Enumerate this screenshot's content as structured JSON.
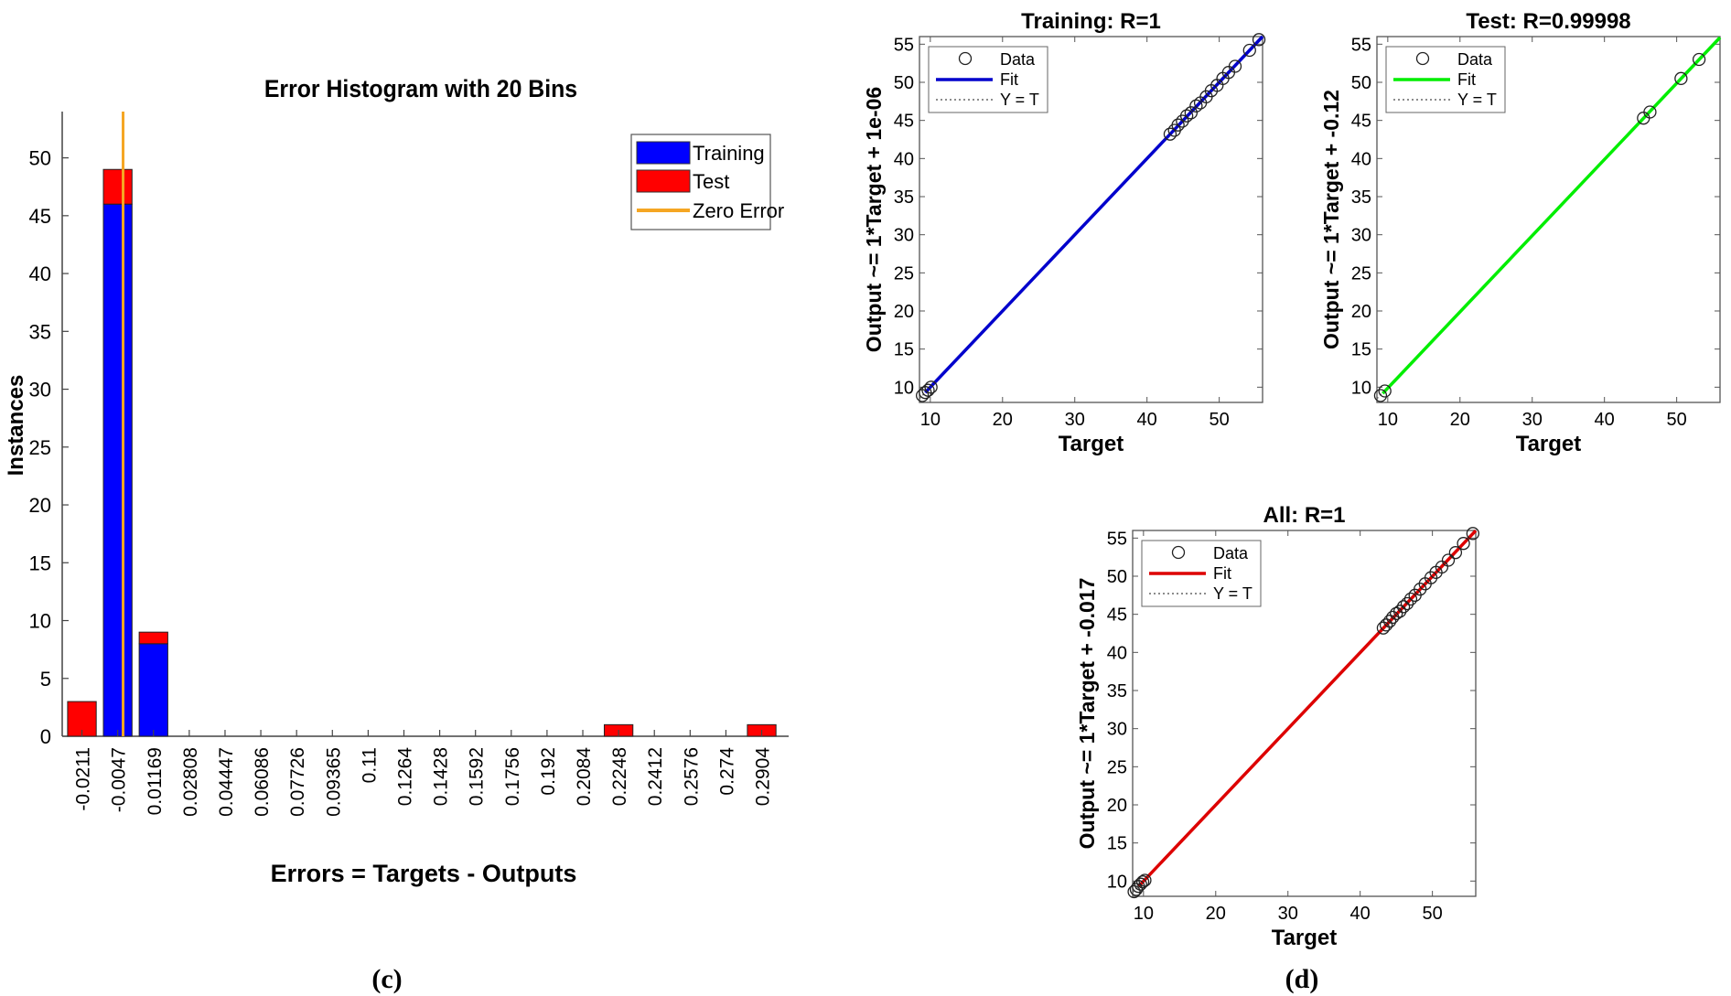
{
  "panel_labels": {
    "c": "(c)",
    "d": "(d)"
  },
  "colors": {
    "training": "#0000ff",
    "test": "#ff0000",
    "zero_error": "#f5a623",
    "fit_training": "#0000cc",
    "fit_test": "#00ee00",
    "fit_all": "#dd0000"
  },
  "legend_labels": {
    "data": "Data",
    "fit": "Fit",
    "yt": "Y = T"
  },
  "chart_data": [
    {
      "id": "histogram",
      "type": "bar",
      "stacked": true,
      "title": "Error Histogram with 20 Bins",
      "xlabel": "Errors = Targets - Outputs",
      "ylabel": "Instances",
      "ylim": [
        0,
        54
      ],
      "yticks": [
        0,
        5,
        10,
        15,
        20,
        25,
        30,
        35,
        40,
        45,
        50
      ],
      "categories": [
        "-0.0211",
        "-0.0047",
        "0.01169",
        "0.02808",
        "0.04447",
        "0.06086",
        "0.07726",
        "0.09365",
        "0.11",
        "0.1264",
        "0.1428",
        "0.1592",
        "0.1756",
        "0.192",
        "0.2084",
        "0.2248",
        "0.2412",
        "0.2576",
        "0.274",
        "0.2904"
      ],
      "series": [
        {
          "name": "Training",
          "values": [
            0,
            46,
            8,
            0,
            0,
            0,
            0,
            0,
            0,
            0,
            0,
            0,
            0,
            0,
            0,
            0,
            0,
            0,
            0,
            0
          ]
        },
        {
          "name": "Test",
          "values": [
            3,
            3,
            1,
            0,
            0,
            0,
            0,
            0,
            0,
            0,
            0,
            0,
            0,
            0,
            0,
            1,
            0,
            0,
            0,
            1
          ]
        }
      ],
      "zero_error_bin": 1.15,
      "legend": [
        "Training",
        "Test",
        "Zero Error"
      ],
      "legend_position": "top-right"
    },
    {
      "id": "training",
      "type": "scatter",
      "title": "Training: R=1",
      "xlabel": "Target",
      "ylabel": "Output ~= 1*Target + 1e-06",
      "xlim": [
        8.5,
        56
      ],
      "ylim": [
        8,
        56
      ],
      "xticks": [
        10,
        20,
        30,
        40,
        50
      ],
      "yticks": [
        10,
        15,
        20,
        25,
        30,
        35,
        40,
        45,
        50,
        55
      ],
      "fit": {
        "slope": 1,
        "intercept": 1e-06
      },
      "fit_color_key": "fit_training",
      "legend_position": "top-left",
      "points": [
        [
          8.9,
          8.9
        ],
        [
          9.3,
          9.3
        ],
        [
          9.7,
          9.6
        ],
        [
          10.1,
          10.0
        ],
        [
          43.2,
          43.2
        ],
        [
          43.8,
          43.7
        ],
        [
          44.3,
          44.4
        ],
        [
          44.9,
          44.9
        ],
        [
          45.5,
          45.6
        ],
        [
          46.1,
          46.0
        ],
        [
          46.8,
          46.9
        ],
        [
          47.4,
          47.3
        ],
        [
          48.2,
          48.1
        ],
        [
          48.9,
          48.9
        ],
        [
          49.7,
          49.6
        ],
        [
          50.5,
          50.5
        ],
        [
          51.3,
          51.3
        ],
        [
          52.2,
          52.1
        ],
        [
          54.2,
          54.2
        ],
        [
          55.5,
          55.6
        ]
      ],
      "legend_placement": "top-left"
    },
    {
      "id": "test",
      "type": "scatter",
      "title": "Test: R=0.99998",
      "xlabel": "Target",
      "ylabel": "Output ~= 1*Target + -0.12",
      "xlim": [
        8.5,
        56
      ],
      "ylim": [
        8,
        56
      ],
      "xticks": [
        10,
        20,
        30,
        40,
        50
      ],
      "yticks": [
        10,
        15,
        20,
        25,
        30,
        35,
        40,
        45,
        50,
        55
      ],
      "fit": {
        "slope": 1,
        "intercept": -0.12
      },
      "fit_color_key": "fit_test",
      "points": [
        [
          9.0,
          8.9
        ],
        [
          9.6,
          9.5
        ],
        [
          45.4,
          45.3
        ],
        [
          46.3,
          46.1
        ],
        [
          50.6,
          50.5
        ],
        [
          53.1,
          53.0
        ]
      ],
      "legend_placement": "top-left"
    },
    {
      "id": "all",
      "type": "scatter",
      "title": "All: R=1",
      "xlabel": "Target",
      "ylabel": "Output ~= 1*Target + -0.017",
      "xlim": [
        8.5,
        56
      ],
      "ylim": [
        8,
        56
      ],
      "xticks": [
        10,
        20,
        30,
        40,
        50
      ],
      "yticks": [
        10,
        15,
        20,
        25,
        30,
        35,
        40,
        45,
        50,
        55
      ],
      "fit": {
        "slope": 1,
        "intercept": -0.017
      },
      "fit_color_key": "fit_all",
      "points": [
        [
          8.7,
          8.6
        ],
        [
          9.0,
          8.9
        ],
        [
          9.3,
          9.3
        ],
        [
          9.6,
          9.6
        ],
        [
          9.9,
          9.9
        ],
        [
          10.2,
          10.1
        ],
        [
          43.2,
          43.2
        ],
        [
          43.6,
          43.6
        ],
        [
          44.1,
          44.1
        ],
        [
          44.5,
          44.6
        ],
        [
          45.0,
          45.1
        ],
        [
          45.5,
          45.4
        ],
        [
          46.0,
          46.0
        ],
        [
          46.5,
          46.4
        ],
        [
          47.0,
          47.0
        ],
        [
          47.6,
          47.5
        ],
        [
          48.3,
          48.3
        ],
        [
          49.0,
          49.0
        ],
        [
          49.8,
          49.8
        ],
        [
          50.5,
          50.5
        ],
        [
          51.3,
          51.2
        ],
        [
          52.2,
          52.1
        ],
        [
          53.2,
          53.1
        ],
        [
          54.3,
          54.3
        ],
        [
          55.6,
          55.6
        ]
      ],
      "legend_placement": "top-left"
    }
  ]
}
